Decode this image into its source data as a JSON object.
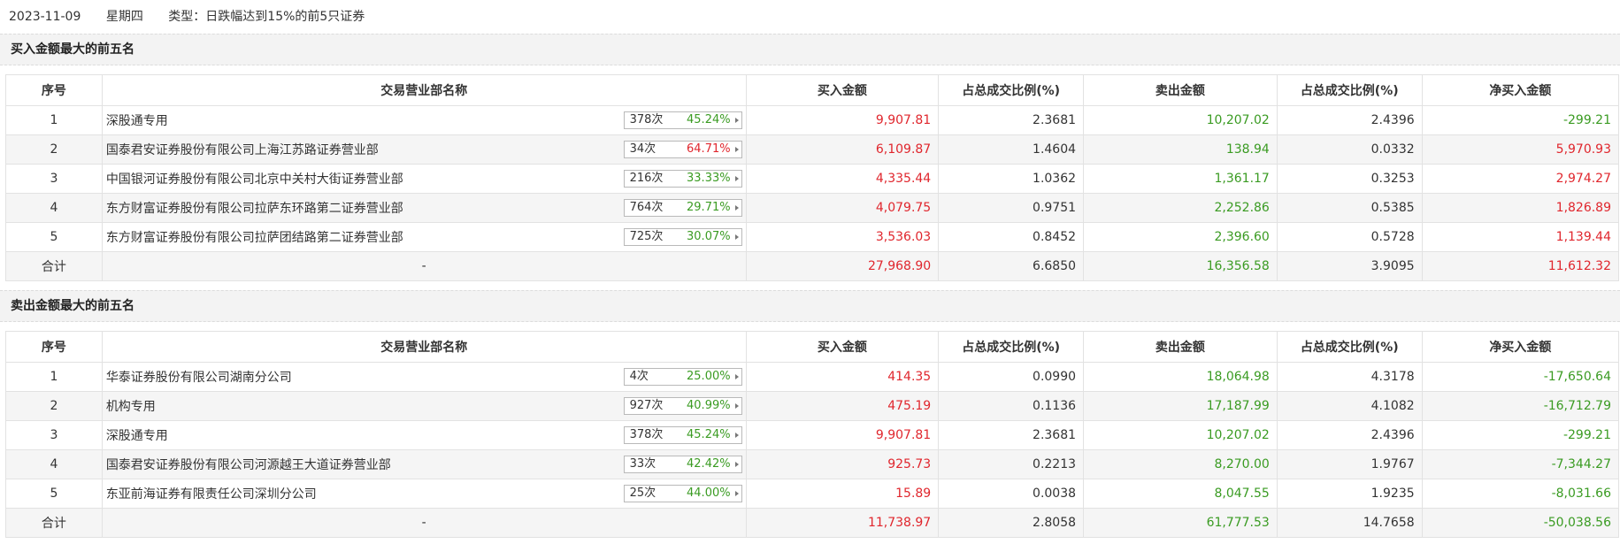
{
  "info": {
    "date": "2023-11-09",
    "weekday": "星期四",
    "type": "类型：日跌幅达到15%的前5只证券"
  },
  "buy_section": {
    "title": "买入金额最大的前五名",
    "headers": [
      "序号",
      "交易营业部名称",
      "买入金额",
      "占总成交比例(%)",
      "卖出金额",
      "占总成交比例(%)",
      "净买入金额"
    ],
    "rows": [
      {
        "idx": "1",
        "name": "深股通专用",
        "times": "378次",
        "pct": "45.24%",
        "pct_color": "green",
        "buy": "9,907.81",
        "buy_ratio": "2.3681",
        "sell": "10,207.02",
        "sell_ratio": "2.4396",
        "net": "-299.21",
        "net_color": "green"
      },
      {
        "idx": "2",
        "name": "国泰君安证券股份有限公司上海江苏路证券营业部",
        "times": "34次",
        "pct": "64.71%",
        "pct_color": "red",
        "buy": "6,109.87",
        "buy_ratio": "1.4604",
        "sell": "138.94",
        "sell_ratio": "0.0332",
        "net": "5,970.93",
        "net_color": "red"
      },
      {
        "idx": "3",
        "name": "中国银河证券股份有限公司北京中关村大街证券营业部",
        "times": "216次",
        "pct": "33.33%",
        "pct_color": "green",
        "buy": "4,335.44",
        "buy_ratio": "1.0362",
        "sell": "1,361.17",
        "sell_ratio": "0.3253",
        "net": "2,974.27",
        "net_color": "red"
      },
      {
        "idx": "4",
        "name": "东方财富证券股份有限公司拉萨东环路第二证券营业部",
        "times": "764次",
        "pct": "29.71%",
        "pct_color": "green",
        "buy": "4,079.75",
        "buy_ratio": "0.9751",
        "sell": "2,252.86",
        "sell_ratio": "0.5385",
        "net": "1,826.89",
        "net_color": "red"
      },
      {
        "idx": "5",
        "name": "东方财富证券股份有限公司拉萨团结路第二证券营业部",
        "times": "725次",
        "pct": "30.07%",
        "pct_color": "green",
        "buy": "3,536.03",
        "buy_ratio": "0.8452",
        "sell": "2,396.60",
        "sell_ratio": "0.5728",
        "net": "1,139.44",
        "net_color": "red"
      }
    ],
    "total": {
      "label": "合计",
      "name": "-",
      "buy": "27,968.90",
      "buy_ratio": "6.6850",
      "sell": "16,356.58",
      "sell_ratio": "3.9095",
      "net": "11,612.32",
      "net_color": "red"
    }
  },
  "sell_section": {
    "title": "卖出金额最大的前五名",
    "headers": [
      "序号",
      "交易营业部名称",
      "买入金额",
      "占总成交比例(%)",
      "卖出金额",
      "占总成交比例(%)",
      "净买入金额"
    ],
    "rows": [
      {
        "idx": "1",
        "name": "华泰证券股份有限公司湖南分公司",
        "times": "4次",
        "pct": "25.00%",
        "pct_color": "green",
        "buy": "414.35",
        "buy_ratio": "0.0990",
        "sell": "18,064.98",
        "sell_ratio": "4.3178",
        "net": "-17,650.64",
        "net_color": "green"
      },
      {
        "idx": "2",
        "name": "机构专用",
        "times": "927次",
        "pct": "40.99%",
        "pct_color": "green",
        "buy": "475.19",
        "buy_ratio": "0.1136",
        "sell": "17,187.99",
        "sell_ratio": "4.1082",
        "net": "-16,712.79",
        "net_color": "green"
      },
      {
        "idx": "3",
        "name": "深股通专用",
        "times": "378次",
        "pct": "45.24%",
        "pct_color": "green",
        "buy": "9,907.81",
        "buy_ratio": "2.3681",
        "sell": "10,207.02",
        "sell_ratio": "2.4396",
        "net": "-299.21",
        "net_color": "green"
      },
      {
        "idx": "4",
        "name": "国泰君安证券股份有限公司河源越王大道证券营业部",
        "times": "33次",
        "pct": "42.42%",
        "pct_color": "green",
        "buy": "925.73",
        "buy_ratio": "0.2213",
        "sell": "8,270.00",
        "sell_ratio": "1.9767",
        "net": "-7,344.27",
        "net_color": "green"
      },
      {
        "idx": "5",
        "name": "东亚前海证券有限责任公司深圳分公司",
        "times": "25次",
        "pct": "44.00%",
        "pct_color": "green",
        "buy": "15.89",
        "buy_ratio": "0.0038",
        "sell": "8,047.55",
        "sell_ratio": "1.9235",
        "net": "-8,031.66",
        "net_color": "green"
      }
    ],
    "total": {
      "label": "合计",
      "name": "-",
      "buy": "11,738.97",
      "buy_ratio": "2.8058",
      "sell": "61,777.53",
      "sell_ratio": "14.7658",
      "net": "-50,038.56",
      "net_color": "green"
    }
  },
  "colors": {
    "red": "#e0262d",
    "green": "#3a9b22"
  },
  "icons": {
    "badge_arrow": "caret-right-icon"
  }
}
